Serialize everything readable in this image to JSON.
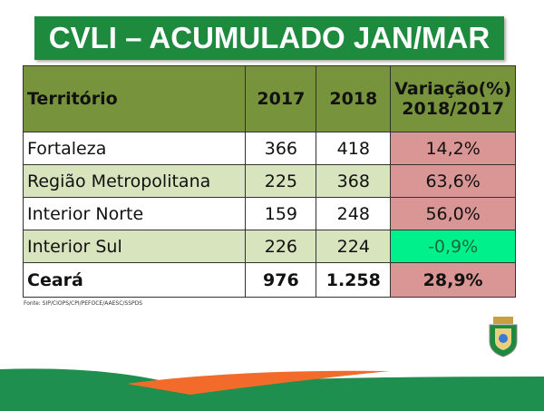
{
  "title": "CVLI – ACUMULADO JAN/MAR",
  "table": {
    "headers": [
      "Território",
      "2017",
      "2018",
      "Variação(%)",
      "2018/2017"
    ],
    "rows": [
      {
        "territorio": "Fortaleza",
        "y2017": "366",
        "y2018": "418",
        "variacao": "14,2%"
      },
      {
        "territorio": "Região Metropolitana",
        "y2017": "225",
        "y2018": "368",
        "variacao": "63,6%"
      },
      {
        "territorio": "Interior Norte",
        "y2017": "159",
        "y2018": "248",
        "variacao": "56,0%"
      },
      {
        "territorio": "Interior Sul",
        "y2017": "226",
        "y2018": "224",
        "variacao": "-0,9%"
      },
      {
        "territorio": "Ceará",
        "y2017": "976",
        "y2018": "1.258",
        "variacao": "28,9%"
      }
    ]
  },
  "source": "Fonte: SIP/CIOPS/CPI/PEFOCE/AAESC/SSPDS",
  "colors": {
    "title_bg": "#1e8a3e",
    "header_bg": "#77933c",
    "alt_row": "#d7e4bd",
    "increase": "#d99694",
    "decrease": "#00f08c",
    "orange": "#f26b2a"
  }
}
